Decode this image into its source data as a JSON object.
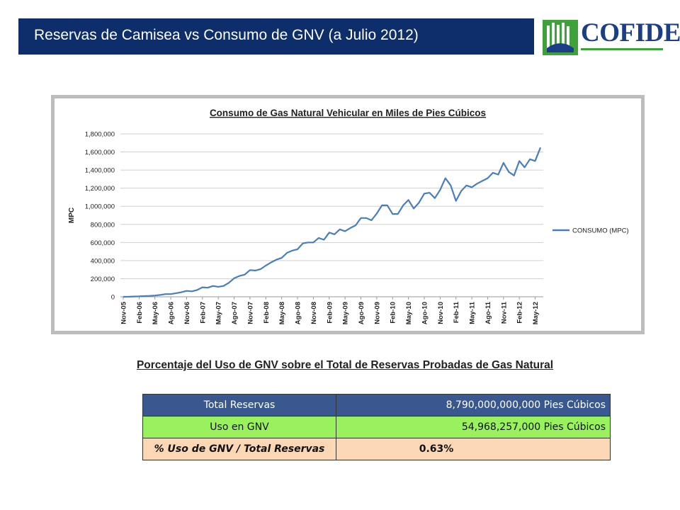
{
  "header": {
    "title": "Reservas de Camisea vs Consumo de GNV (a Julio 2012)"
  },
  "logo": {
    "text": "COFIDE"
  },
  "chart_data": {
    "type": "line",
    "title": "Consumo de Gas Natural Vehicular en  Miles de Pies Cúbicos",
    "xlabel": "",
    "ylabel": "MPC",
    "ylim": [
      0,
      1800000
    ],
    "y_ticks": [
      0,
      200000,
      400000,
      600000,
      800000,
      1000000,
      1200000,
      1400000,
      1600000,
      1800000
    ],
    "y_tick_labels": [
      "0",
      "200,000",
      "400,000",
      "600,000",
      "800,000",
      "1,000,000",
      "1,200,000",
      "1,400,000",
      "1,600,000",
      "1,800,000"
    ],
    "x_tick_labels": [
      "Nov-05",
      "Feb-06",
      "May-06",
      "Ago-06",
      "Nov-06",
      "Feb-07",
      "May-07",
      "Ago-07",
      "Nov-07",
      "Feb-08",
      "May-08",
      "Ago-08",
      "Nov-08",
      "Feb-09",
      "May-09",
      "Ago-09",
      "Nov-09",
      "Feb-10",
      "May-10",
      "Ago-10",
      "Nov-10",
      "Feb-11",
      "May-11",
      "Ago-11",
      "Nov-11",
      "Feb-12",
      "May-12"
    ],
    "legend_position": "right",
    "series_color": "#4a7ebb",
    "series": [
      {
        "name": "CONSUMO (MPC)",
        "values": [
          0,
          1000,
          3000,
          5000,
          8000,
          10000,
          14000,
          20000,
          30000,
          30000,
          40000,
          50000,
          65000,
          60000,
          75000,
          105000,
          100000,
          120000,
          110000,
          120000,
          155000,
          205000,
          230000,
          245000,
          295000,
          290000,
          305000,
          345000,
          380000,
          410000,
          430000,
          485000,
          510000,
          525000,
          590000,
          600000,
          600000,
          650000,
          630000,
          710000,
          690000,
          745000,
          725000,
          760000,
          790000,
          870000,
          870000,
          845000,
          920000,
          1010000,
          1010000,
          915000,
          915000,
          1010000,
          1070000,
          975000,
          1040000,
          1140000,
          1150000,
          1090000,
          1180000,
          1310000,
          1230000,
          1060000,
          1170000,
          1230000,
          1210000,
          1250000,
          1280000,
          1310000,
          1370000,
          1350000,
          1480000,
          1380000,
          1340000,
          1500000,
          1430000,
          1520000,
          1500000,
          1650000
        ]
      }
    ]
  },
  "table": {
    "title": "Porcentaje del Uso de GNV sobre el Total de Reservas Probadas de Gas Natural",
    "rows": [
      {
        "label": "Total Reservas",
        "value": "8,790,000,000,000   Pies Cúbicos"
      },
      {
        "label": "Uso en GNV",
        "value": "54,968,257,000   Pies Cúbicos"
      },
      {
        "label": "% Uso de GNV / Total Reservas",
        "value": "0.63%"
      }
    ]
  }
}
